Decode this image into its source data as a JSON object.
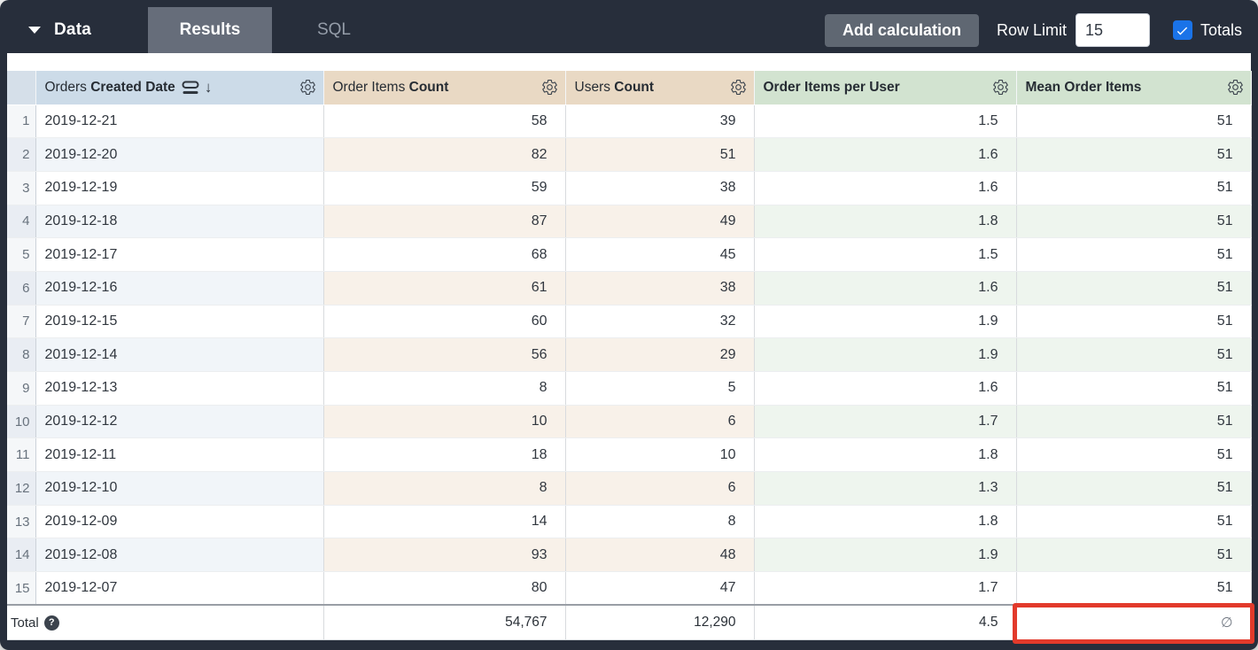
{
  "toolbar": {
    "data_label": "Data",
    "tabs": [
      {
        "label": "Results",
        "active": true
      },
      {
        "label": "SQL",
        "active": false
      }
    ],
    "add_calculation_label": "Add calculation",
    "row_limit_label": "Row Limit",
    "row_limit_value": "15",
    "totals_label": "Totals",
    "totals_checked": true
  },
  "table": {
    "columns": [
      {
        "prefix": "Orders ",
        "bold": "Created Date",
        "type": "dimension",
        "sorted_desc": true
      },
      {
        "prefix": "Order Items ",
        "bold": "Count",
        "type": "measure"
      },
      {
        "prefix": "Users ",
        "bold": "Count",
        "type": "measure"
      },
      {
        "prefix": "",
        "bold": "Order Items per User",
        "type": "table_calculation"
      },
      {
        "prefix": "",
        "bold": "Mean Order Items",
        "type": "table_calculation"
      }
    ],
    "rows": [
      {
        "index": "1",
        "date": "2019-12-21",
        "order_items_count": "58",
        "users_count": "39",
        "order_items_per_user": "1.5",
        "mean_order_items": "51"
      },
      {
        "index": "2",
        "date": "2019-12-20",
        "order_items_count": "82",
        "users_count": "51",
        "order_items_per_user": "1.6",
        "mean_order_items": "51"
      },
      {
        "index": "3",
        "date": "2019-12-19",
        "order_items_count": "59",
        "users_count": "38",
        "order_items_per_user": "1.6",
        "mean_order_items": "51"
      },
      {
        "index": "4",
        "date": "2019-12-18",
        "order_items_count": "87",
        "users_count": "49",
        "order_items_per_user": "1.8",
        "mean_order_items": "51"
      },
      {
        "index": "5",
        "date": "2019-12-17",
        "order_items_count": "68",
        "users_count": "45",
        "order_items_per_user": "1.5",
        "mean_order_items": "51"
      },
      {
        "index": "6",
        "date": "2019-12-16",
        "order_items_count": "61",
        "users_count": "38",
        "order_items_per_user": "1.6",
        "mean_order_items": "51"
      },
      {
        "index": "7",
        "date": "2019-12-15",
        "order_items_count": "60",
        "users_count": "32",
        "order_items_per_user": "1.9",
        "mean_order_items": "51"
      },
      {
        "index": "8",
        "date": "2019-12-14",
        "order_items_count": "56",
        "users_count": "29",
        "order_items_per_user": "1.9",
        "mean_order_items": "51"
      },
      {
        "index": "9",
        "date": "2019-12-13",
        "order_items_count": "8",
        "users_count": "5",
        "order_items_per_user": "1.6",
        "mean_order_items": "51"
      },
      {
        "index": "10",
        "date": "2019-12-12",
        "order_items_count": "10",
        "users_count": "6",
        "order_items_per_user": "1.7",
        "mean_order_items": "51"
      },
      {
        "index": "11",
        "date": "2019-12-11",
        "order_items_count": "18",
        "users_count": "10",
        "order_items_per_user": "1.8",
        "mean_order_items": "51"
      },
      {
        "index": "12",
        "date": "2019-12-10",
        "order_items_count": "8",
        "users_count": "6",
        "order_items_per_user": "1.3",
        "mean_order_items": "51"
      },
      {
        "index": "13",
        "date": "2019-12-09",
        "order_items_count": "14",
        "users_count": "8",
        "order_items_per_user": "1.8",
        "mean_order_items": "51"
      },
      {
        "index": "14",
        "date": "2019-12-08",
        "order_items_count": "93",
        "users_count": "48",
        "order_items_per_user": "1.9",
        "mean_order_items": "51"
      },
      {
        "index": "15",
        "date": "2019-12-07",
        "order_items_count": "80",
        "users_count": "47",
        "order_items_per_user": "1.7",
        "mean_order_items": "51"
      }
    ],
    "total": {
      "label": "Total",
      "order_items_count": "54,767",
      "users_count": "12,290",
      "order_items_per_user": "4.5",
      "mean_order_items": "∅"
    }
  },
  "colors": {
    "toolbar_bg": "#272e3b",
    "active_tab_bg": "#666d7a",
    "checkbox_accent": "#1a73e8",
    "dimension_header": "#ccdbe8",
    "measure_header": "#e9d9c4",
    "table_calc_header": "#d2e3d0",
    "highlight_red": "#e23a2b"
  },
  "annotations": {
    "highlight": "red box around Mean Order Items total cell (null ∅ value)"
  }
}
